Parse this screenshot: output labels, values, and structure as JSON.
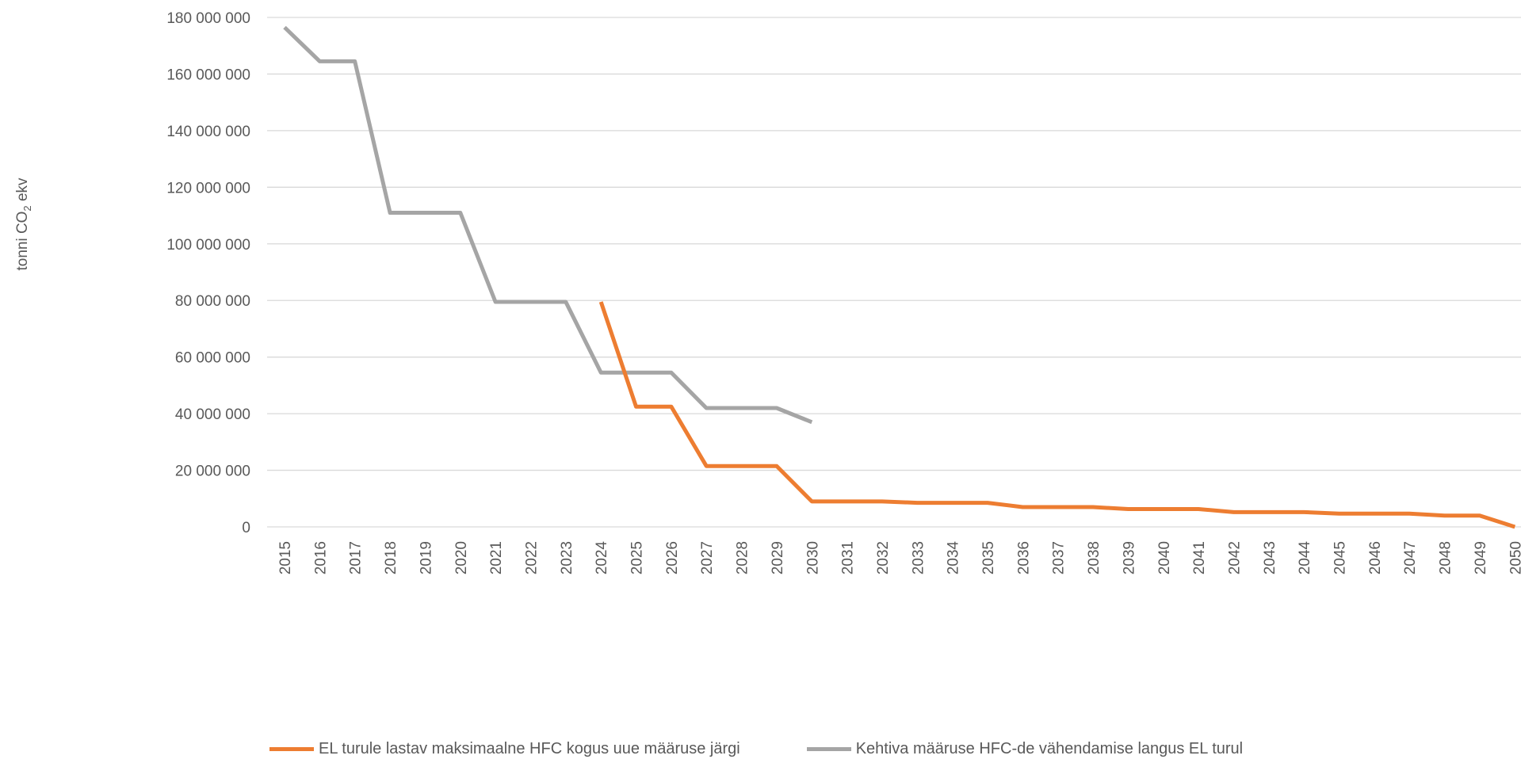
{
  "chart_data": {
    "type": "line",
    "title": "",
    "xlabel": "",
    "ylabel_main": "tonni CO",
    "ylabel_sub": "2",
    "ylabel_tail": " ekv",
    "ylim": [
      0,
      180000000
    ],
    "yticks": [
      0,
      20000000,
      40000000,
      60000000,
      80000000,
      100000000,
      120000000,
      140000000,
      160000000,
      180000000
    ],
    "ytick_labels": [
      "0",
      "20 000 000",
      "40 000 000",
      "60 000 000",
      "80 000 000",
      "100 000 000",
      "120 000 000",
      "140 000 000",
      "160 000 000",
      "180 000 000"
    ],
    "grid": true,
    "legend_position": "bottom",
    "categories": [
      "2015",
      "2016",
      "2017",
      "2018",
      "2019",
      "2020",
      "2021",
      "2022",
      "2023",
      "2024",
      "2025",
      "2026",
      "2027",
      "2028",
      "2029",
      "2030",
      "2031",
      "2032",
      "2033",
      "2034",
      "2035",
      "2036",
      "2037",
      "2038",
      "2039",
      "2040",
      "2041",
      "2042",
      "2043",
      "2044",
      "2045",
      "2046",
      "2047",
      "2048",
      "2049",
      "2050"
    ],
    "series": [
      {
        "name": "EL turule lastav maksimaalne HFC kogus uue määruse järgi",
        "color": "#ED7D31",
        "values": [
          null,
          null,
          null,
          null,
          null,
          null,
          null,
          null,
          null,
          79500000,
          42500000,
          42500000,
          21500000,
          21500000,
          21500000,
          9000000,
          9000000,
          9000000,
          8500000,
          8500000,
          8500000,
          7000000,
          7000000,
          7000000,
          6300000,
          6300000,
          6300000,
          5200000,
          5200000,
          5200000,
          4700000,
          4700000,
          4700000,
          4000000,
          4000000,
          0
        ]
      },
      {
        "name": "Kehtiva määruse HFC-de vähendamise langus EL turul",
        "color": "#A5A5A5",
        "values": [
          176500000,
          164500000,
          164500000,
          111000000,
          111000000,
          111000000,
          79500000,
          79500000,
          79500000,
          54500000,
          54500000,
          54500000,
          42000000,
          42000000,
          42000000,
          37000000,
          null,
          null,
          null,
          null,
          null,
          null,
          null,
          null,
          null,
          null,
          null,
          null,
          null,
          null,
          null,
          null,
          null,
          null,
          null,
          null
        ]
      }
    ]
  }
}
